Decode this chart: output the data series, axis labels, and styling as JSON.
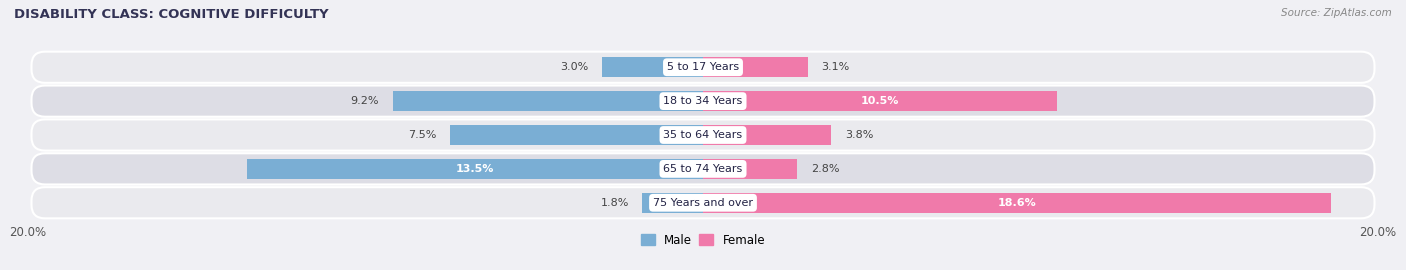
{
  "title": "DISABILITY CLASS: COGNITIVE DIFFICULTY",
  "source": "Source: ZipAtlas.com",
  "categories": [
    "5 to 17 Years",
    "18 to 34 Years",
    "35 to 64 Years",
    "65 to 74 Years",
    "75 Years and over"
  ],
  "male_values": [
    3.0,
    9.2,
    7.5,
    13.5,
    1.8
  ],
  "female_values": [
    3.1,
    10.5,
    3.8,
    2.8,
    18.6
  ],
  "max_value": 20.0,
  "male_color": "#7aaed4",
  "female_color": "#f07aaa",
  "row_bg_color": "#e8e8ec",
  "row_alt_bg_color": "#dcdce4",
  "label_fontsize": 8.0,
  "title_fontsize": 9.5,
  "legend_fontsize": 8.5,
  "axis_label_fontsize": 8.5
}
